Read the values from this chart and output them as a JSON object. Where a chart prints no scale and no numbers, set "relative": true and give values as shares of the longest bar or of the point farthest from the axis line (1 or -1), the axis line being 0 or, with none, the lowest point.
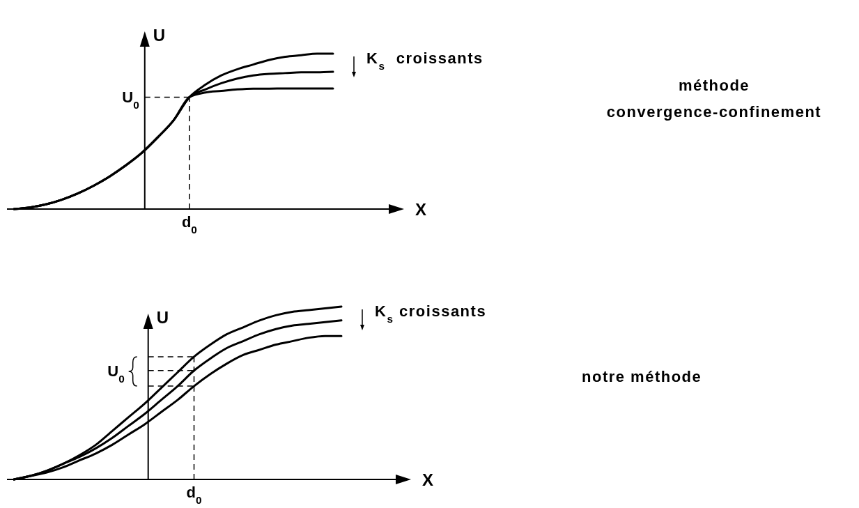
{
  "chart_data": [
    {
      "type": "line",
      "relative": true,
      "xlabel": "X",
      "ylabel": "U",
      "categories": [
        null,
        null,
        null,
        null,
        null,
        null,
        null,
        null,
        null,
        null,
        null,
        null,
        null,
        null,
        null,
        null,
        null,
        null,
        null,
        null,
        null
      ],
      "series": [
        {
          "color": "#000000",
          "values": [
            0,
            0.01,
            0.03,
            0.06,
            0.1,
            0.15,
            0.21,
            0.28,
            0.36,
            0.46,
            0.57,
            0.72,
            0.8,
            0.86,
            0.9,
            0.93,
            0.96,
            0.98,
            0.99,
            1.0,
            1.0
          ]
        },
        {
          "color": "#000000",
          "values": [
            0,
            0.01,
            0.03,
            0.06,
            0.1,
            0.15,
            0.21,
            0.28,
            0.36,
            0.46,
            0.57,
            0.72,
            0.77,
            0.81,
            0.84,
            0.86,
            0.87,
            0.875,
            0.88,
            0.88,
            0.883
          ]
        },
        {
          "color": "#000000",
          "values": [
            0,
            0.01,
            0.03,
            0.06,
            0.1,
            0.15,
            0.21,
            0.28,
            0.36,
            0.46,
            0.57,
            0.72,
            0.75,
            0.76,
            0.77,
            0.775,
            0.775,
            0.776,
            0.776,
            0.776,
            0.776
          ]
        }
      ],
      "ref_lines": [
        {
          "axis": "y",
          "value": 0.72,
          "label": "U$_{0}$",
          "line_style": "dashed"
        }
      ],
      "annotations": [
        "K$_{s}$  croissants",
        "méthode convergence-confinement",
        "d$_{0}$"
      ]
    },
    {
      "type": "line",
      "relative": true,
      "xlabel": "X",
      "ylabel": "U",
      "categories": [
        null,
        null,
        null,
        null,
        null,
        null,
        null,
        null,
        null,
        null,
        null,
        null,
        null,
        null,
        null,
        null,
        null,
        null,
        null,
        null,
        null
      ],
      "series": [
        {
          "color": "#000000",
          "values": [
            0,
            0.02,
            0.05,
            0.09,
            0.14,
            0.2,
            0.28,
            0.36,
            0.44,
            0.53,
            0.62,
            0.71,
            0.78,
            0.84,
            0.88,
            0.92,
            0.95,
            0.97,
            0.98,
            0.99,
            1.0
          ]
        },
        {
          "color": "#000000",
          "values": [
            0,
            0.02,
            0.05,
            0.09,
            0.13,
            0.18,
            0.24,
            0.31,
            0.38,
            0.46,
            0.54,
            0.63,
            0.7,
            0.76,
            0.8,
            0.84,
            0.87,
            0.89,
            0.9,
            0.91,
            0.92
          ]
        },
        {
          "color": "#000000",
          "values": [
            0,
            0.02,
            0.04,
            0.07,
            0.11,
            0.15,
            0.2,
            0.26,
            0.32,
            0.39,
            0.46,
            0.54,
            0.61,
            0.67,
            0.72,
            0.75,
            0.78,
            0.8,
            0.82,
            0.83,
            0.83
          ]
        }
      ],
      "ref_lines": [
        {
          "axis": "y",
          "value": 0.71,
          "label": null,
          "line_style": "dashed"
        },
        {
          "axis": "y",
          "value": 0.63,
          "label": "U$_{0}$",
          "line_style": "dashed"
        },
        {
          "axis": "y",
          "value": 0.54,
          "label": null,
          "line_style": "dashed"
        }
      ],
      "annotations": [
        "K$_{s}$ croissants",
        "notre méthode",
        "d$_{0}$"
      ]
    }
  ]
}
